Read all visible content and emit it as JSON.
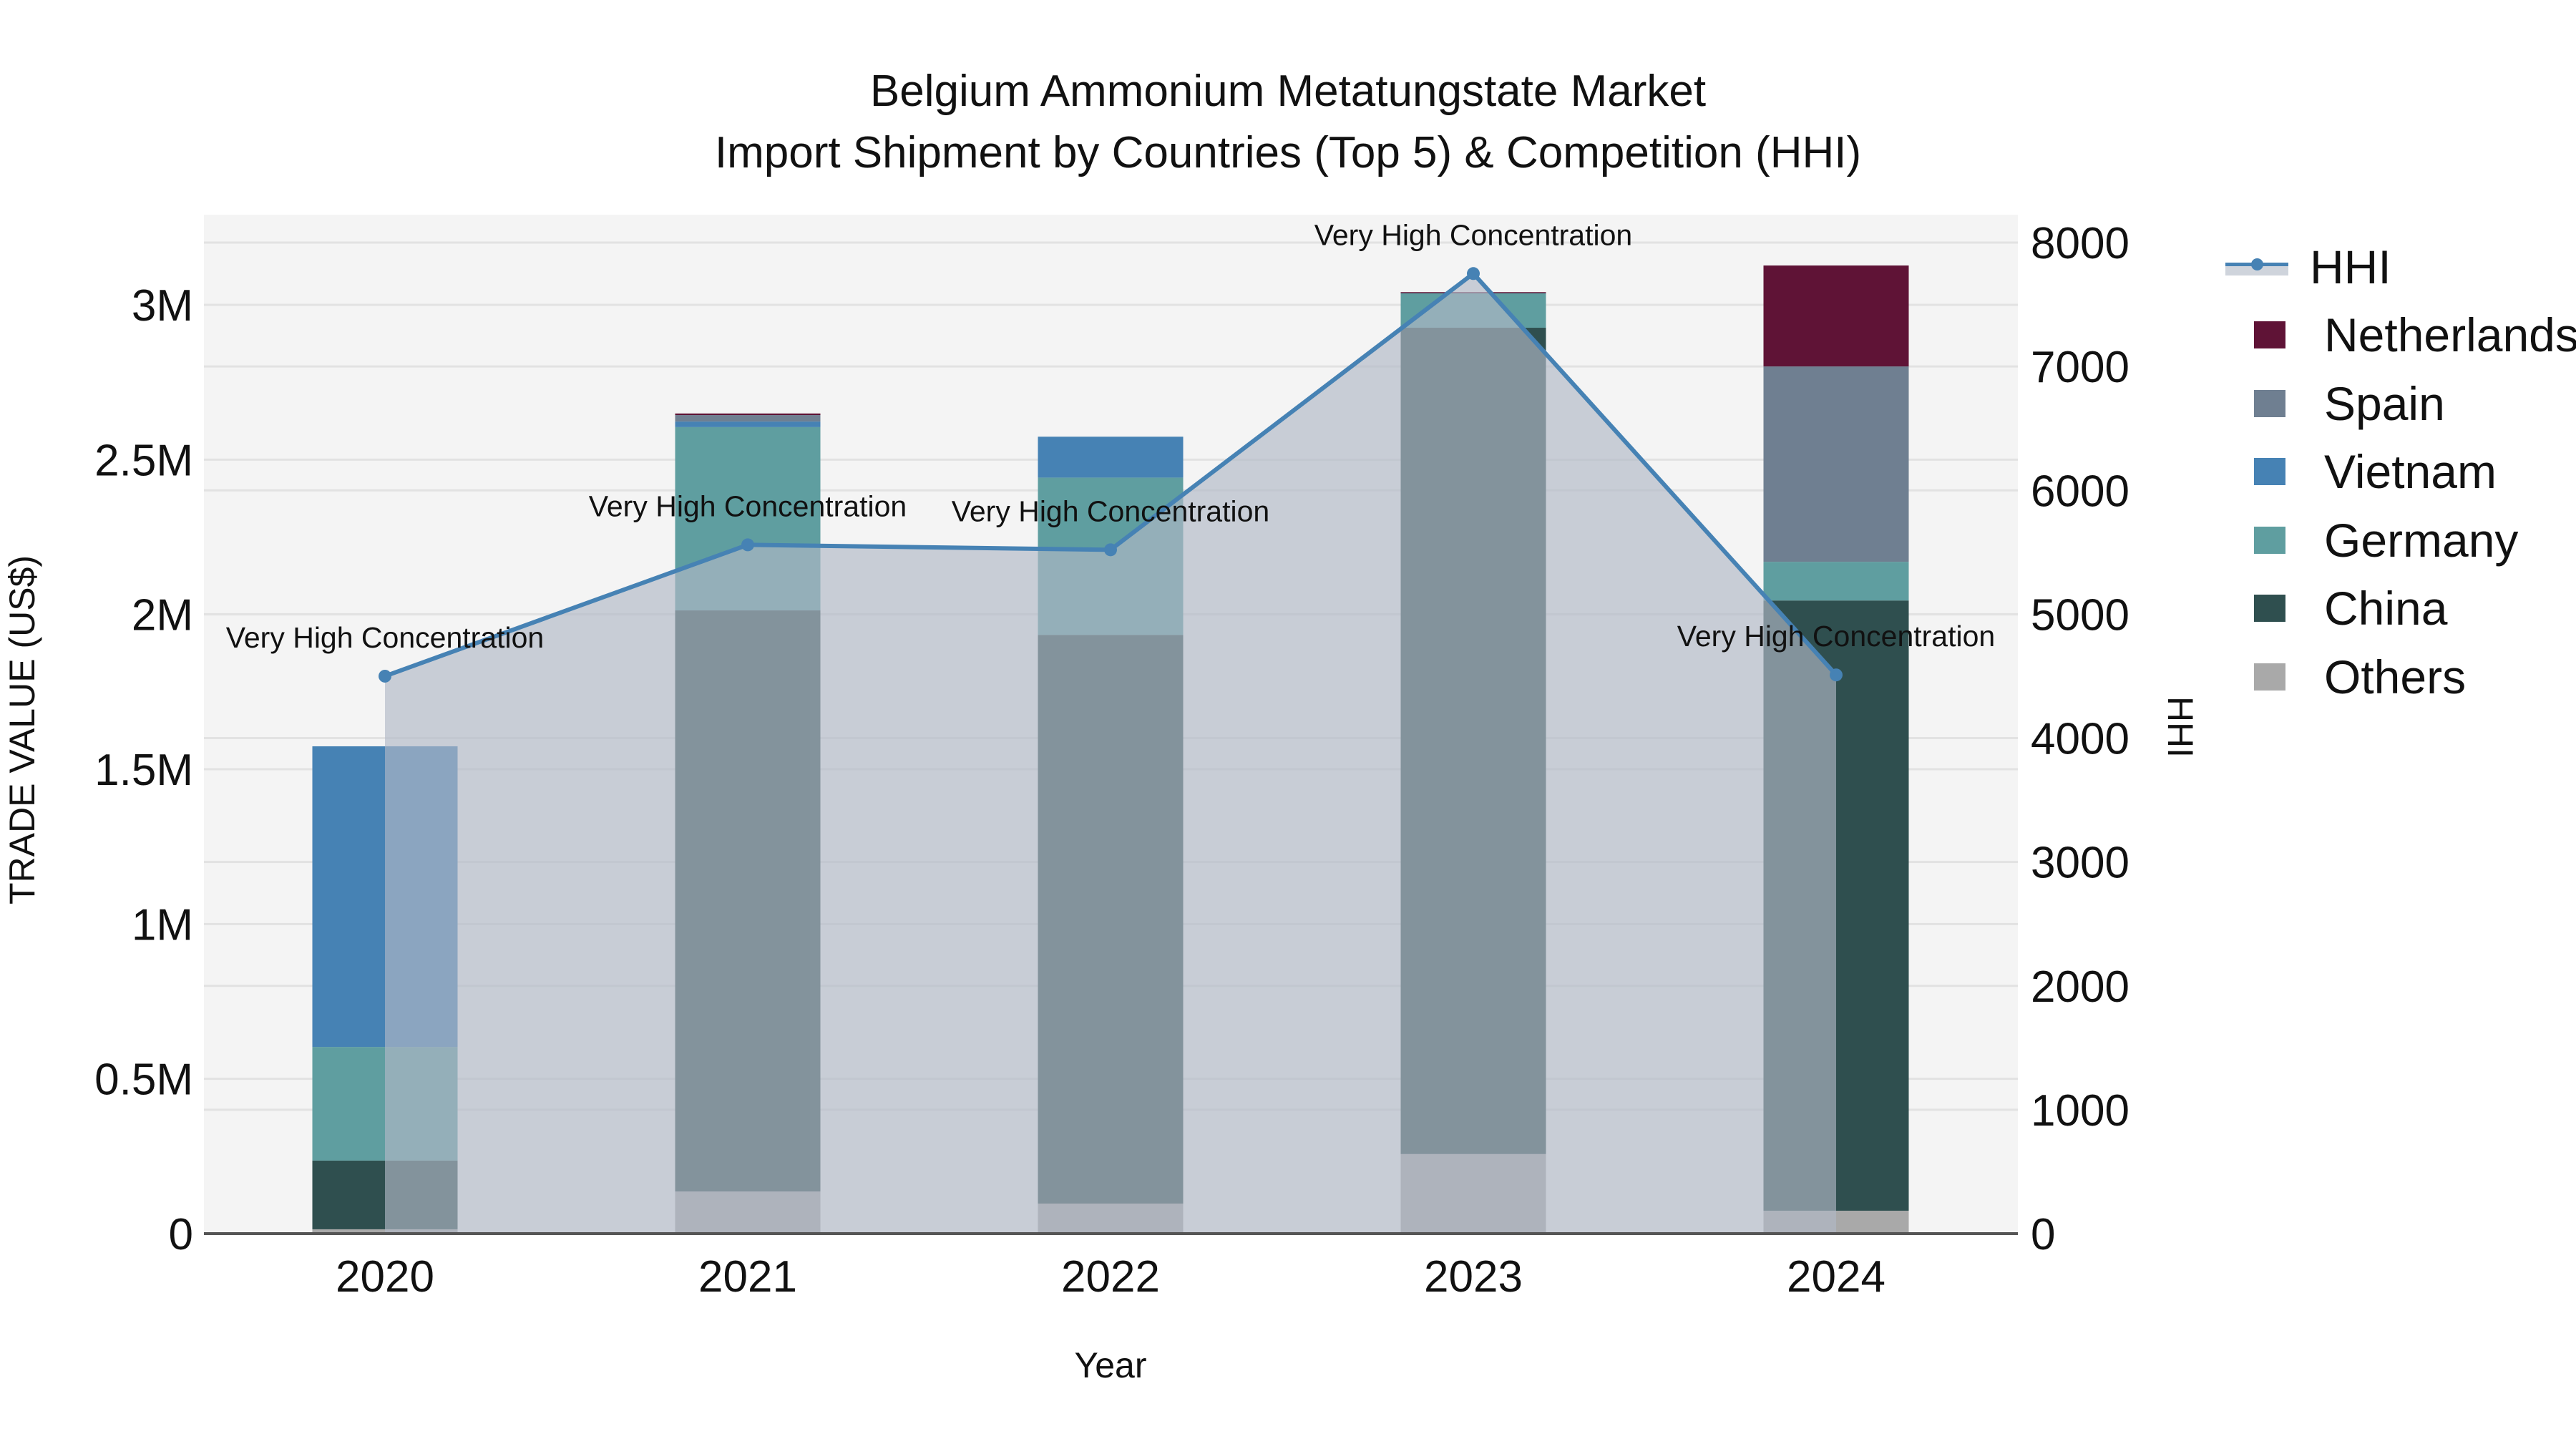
{
  "title": {
    "line1": "Belgium Ammonium Metatungstate Market",
    "line2": "Import Shipment by Countries (Top 5) & Competition (HHI)"
  },
  "axes": {
    "x_title": "Year",
    "y_left_title": "TRADE VALUE (US$)",
    "y_right_title": "HHI",
    "y_left_ticks": [
      "0",
      "0.5M",
      "1M",
      "1.5M",
      "2M",
      "2.5M",
      "3M"
    ],
    "y_right_ticks": [
      "0",
      "1000",
      "2000",
      "3000",
      "4000",
      "5000",
      "6000",
      "7000",
      "8000"
    ]
  },
  "legend": [
    {
      "key": "HHI",
      "label": "HHI",
      "type": "line"
    },
    {
      "key": "Netherlands",
      "label": "Netherlands",
      "color": "#5f1336"
    },
    {
      "key": "Spain",
      "label": "Spain",
      "color": "#6f7f91"
    },
    {
      "key": "Vietnam",
      "label": "Vietnam",
      "color": "#4682b4"
    },
    {
      "key": "Germany",
      "label": "Germany",
      "color": "#5f9ea0"
    },
    {
      "key": "China",
      "label": "China",
      "color": "#2f4f4f"
    },
    {
      "key": "Others",
      "label": "Others",
      "color": "#a9a9a9"
    }
  ],
  "colors": {
    "hhi_line": "#4682b4",
    "hhi_fill": "rgba(176,184,198,0.65)",
    "plot_bg": "#f4f4f4",
    "grid": "#e2e2e2"
  },
  "chart_data": {
    "type": "bar",
    "stacked": true,
    "title": "Belgium Ammonium Metatungstate Market — Import Shipment by Countries (Top 5) & Competition (HHI)",
    "xlabel": "Year",
    "ylabel": "TRADE VALUE (US$)",
    "y2label": "HHI",
    "categories": [
      "2020",
      "2021",
      "2022",
      "2023",
      "2024"
    ],
    "ylim": [
      0,
      3280000
    ],
    "y2lim": [
      0,
      8200
    ],
    "grid": true,
    "legend_position": "right",
    "series": [
      {
        "name": "Others",
        "color": "#a9a9a9",
        "values": [
          14000,
          136000,
          97000,
          257000,
          74000
        ]
      },
      {
        "name": "China",
        "color": "#2f4f4f",
        "values": [
          222000,
          1877000,
          1837000,
          2669000,
          1971000
        ]
      },
      {
        "name": "Germany",
        "color": "#5f9ea0",
        "values": [
          367000,
          592000,
          508000,
          113000,
          125000
        ]
      },
      {
        "name": "Vietnam",
        "color": "#4682b4",
        "values": [
          971000,
          18000,
          132000,
          0,
          0
        ]
      },
      {
        "name": "Spain",
        "color": "#6f7f91",
        "values": [
          0,
          21000,
          0,
          0,
          631000
        ]
      },
      {
        "name": "Netherlands",
        "color": "#5f1336",
        "values": [
          0,
          5000,
          0,
          2000,
          326000
        ]
      }
    ],
    "line_series": {
      "name": "HHI",
      "axis": "right",
      "values": [
        4500,
        5560,
        5520,
        7750,
        4510
      ],
      "annotations": [
        "Very High Concentration",
        "Very High Concentration",
        "Very High Concentration",
        "Very High Concentration",
        "Very High Concentration"
      ]
    }
  }
}
